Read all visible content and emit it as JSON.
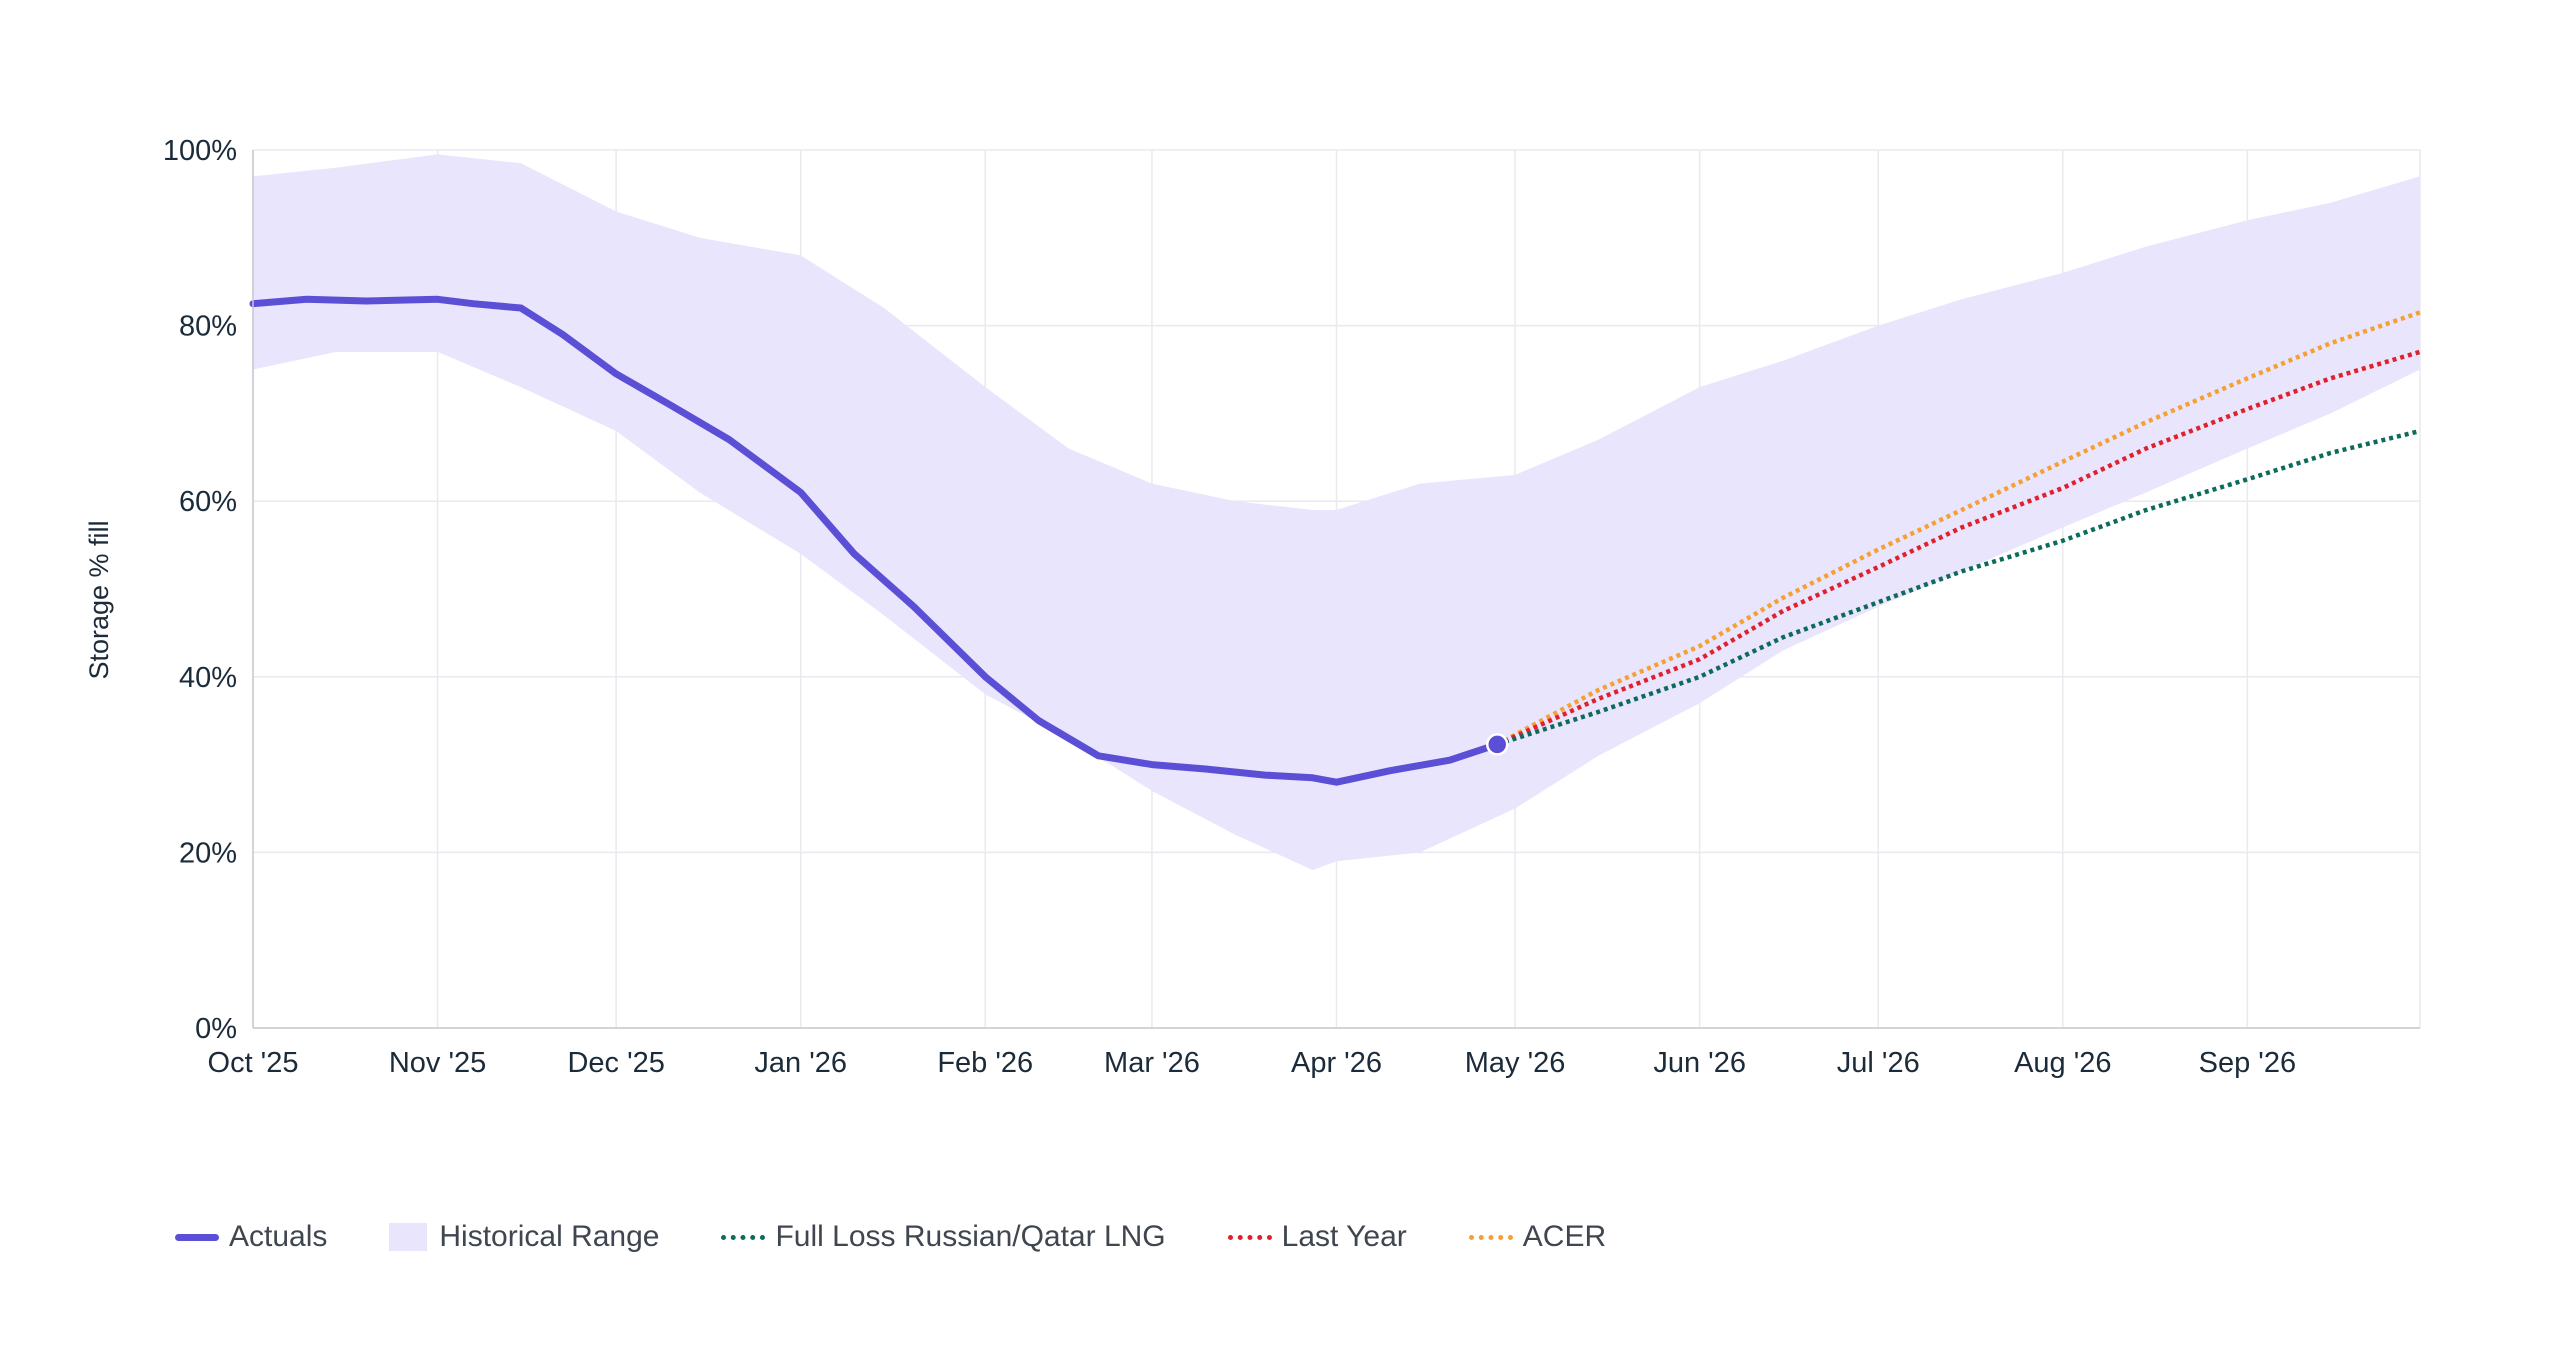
{
  "chart_data": {
    "type": "line",
    "ylabel": "Storage % fill",
    "ylim": [
      0,
      100
    ],
    "yticks": [
      0,
      20,
      40,
      60,
      80,
      100
    ],
    "ytick_labels": [
      "0%",
      "20%",
      "40%",
      "60%",
      "80%",
      "100%"
    ],
    "xlim": [
      "2025-10-01",
      "2026-09-30"
    ],
    "xticks": [
      "2025-10-01",
      "2025-11-01",
      "2025-12-01",
      "2026-01-01",
      "2026-02-01",
      "2026-03-01",
      "2026-04-01",
      "2026-05-01",
      "2026-06-01",
      "2026-07-01",
      "2026-08-01",
      "2026-09-01"
    ],
    "xtick_labels": [
      "Oct '25",
      "Nov '25",
      "Dec '25",
      "Jan '26",
      "Feb '26",
      "Mar '26",
      "Apr '26",
      "May '26",
      "Jun '26",
      "Jul '26",
      "Aug '26",
      "Sep '26"
    ],
    "grid": true,
    "legend_position": "bottom-left",
    "colors": {
      "actuals": "#5b4fd6",
      "range": "#e9e5fc",
      "full_loss": "#0e6b5c",
      "last_year": "#e0202c",
      "acer": "#f5a033",
      "axis_text": "#1c2b3a",
      "grid": "#e9e9ef"
    },
    "historical_range": {
      "name": "Historical Range",
      "x": [
        "2025-10-01",
        "2025-10-15",
        "2025-11-01",
        "2025-11-15",
        "2025-12-01",
        "2025-12-15",
        "2026-01-01",
        "2026-01-15",
        "2026-02-01",
        "2026-02-15",
        "2026-03-01",
        "2026-03-15",
        "2026-03-28",
        "2026-04-01",
        "2026-04-15",
        "2026-05-01",
        "2026-05-15",
        "2026-06-01",
        "2026-06-15",
        "2026-07-01",
        "2026-07-15",
        "2026-08-01",
        "2026-08-15",
        "2026-09-01",
        "2026-09-15",
        "2026-09-30"
      ],
      "lower": [
        75,
        77,
        77,
        73,
        68,
        61,
        54,
        47,
        38,
        33,
        27,
        22,
        18,
        19,
        20,
        25,
        31,
        37,
        43,
        48,
        52,
        57,
        61,
        66,
        70,
        75
      ],
      "upper": [
        97,
        98,
        99.5,
        98.5,
        93,
        90,
        88,
        82,
        73,
        66,
        62,
        60,
        59,
        59,
        62,
        63,
        67,
        73,
        76,
        80,
        83,
        86,
        89,
        92,
        94,
        97
      ]
    },
    "series": [
      {
        "name": "Actuals",
        "x": [
          "2025-10-01",
          "2025-10-10",
          "2025-10-20",
          "2025-11-01",
          "2025-11-07",
          "2025-11-15",
          "2025-11-22",
          "2025-12-01",
          "2025-12-10",
          "2025-12-20",
          "2026-01-01",
          "2026-01-10",
          "2026-01-20",
          "2026-02-01",
          "2026-02-10",
          "2026-02-20",
          "2026-03-01",
          "2026-03-10",
          "2026-03-20",
          "2026-03-28",
          "2026-04-01",
          "2026-04-10",
          "2026-04-20",
          "2026-04-28"
        ],
        "values": [
          82.5,
          83,
          82.8,
          83,
          82.5,
          82,
          79,
          74.5,
          71,
          67,
          61,
          54,
          48,
          40,
          35,
          31,
          30,
          29.5,
          28.8,
          28.5,
          28,
          29.3,
          30.5,
          32.3
        ]
      },
      {
        "name": "Full Loss Russian/Qatar LNG",
        "x": [
          "2026-04-28",
          "2026-05-15",
          "2026-06-01",
          "2026-06-15",
          "2026-07-01",
          "2026-07-15",
          "2026-08-01",
          "2026-08-15",
          "2026-09-01",
          "2026-09-15",
          "2026-09-30"
        ],
        "values": [
          32.3,
          36,
          40,
          44.5,
          48.5,
          52,
          55.5,
          59,
          62.5,
          65.5,
          68
        ]
      },
      {
        "name": "Last Year",
        "x": [
          "2026-04-28",
          "2026-05-15",
          "2026-06-01",
          "2026-06-15",
          "2026-07-01",
          "2026-07-15",
          "2026-08-01",
          "2026-08-15",
          "2026-09-01",
          "2026-09-15",
          "2026-09-30"
        ],
        "values": [
          32.3,
          37.5,
          42,
          47.5,
          52.5,
          57,
          61.5,
          66,
          70.5,
          74,
          77
        ]
      },
      {
        "name": "ACER",
        "x": [
          "2026-04-28",
          "2026-05-15",
          "2026-06-01",
          "2026-06-15",
          "2026-07-01",
          "2026-07-15",
          "2026-08-01",
          "2026-08-15",
          "2026-09-01",
          "2026-09-15",
          "2026-09-30"
        ],
        "values": [
          32.3,
          38.5,
          43.5,
          49,
          54.5,
          59,
          64.5,
          69,
          74,
          78,
          81.5
        ]
      }
    ]
  },
  "legend": {
    "actuals": "Actuals",
    "range": "Historical Range",
    "full_loss": "Full Loss Russian/Qatar LNG",
    "last_year": "Last Year",
    "acer": "ACER"
  }
}
